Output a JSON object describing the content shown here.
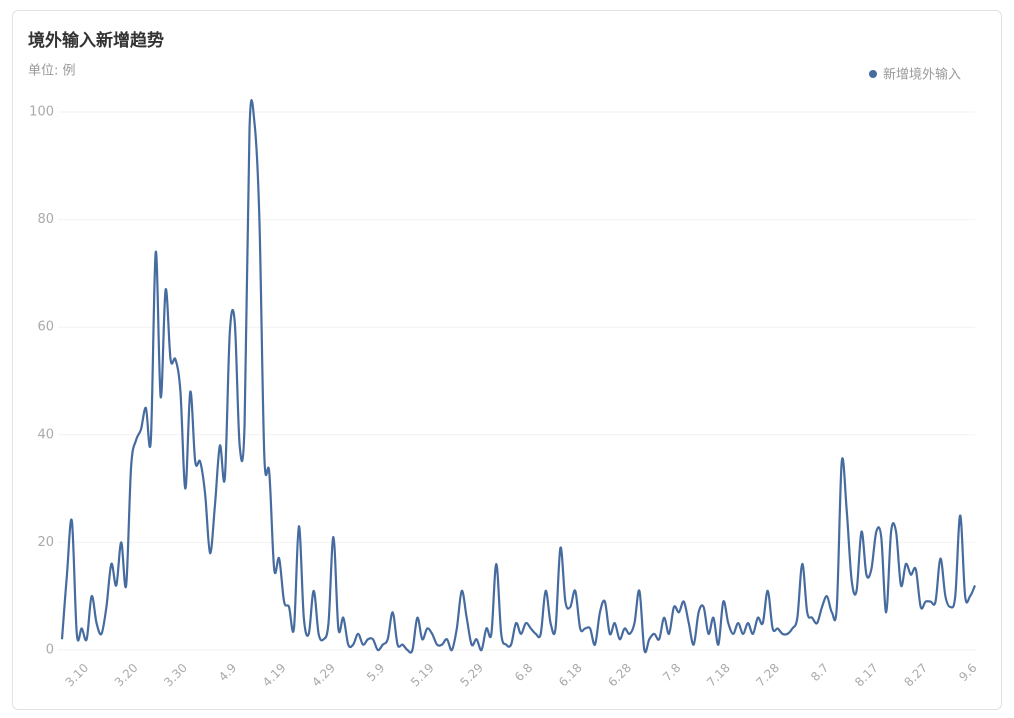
{
  "chart_data": {
    "type": "line",
    "title": "境外输入新增趋势",
    "subtitle": "单位: 例",
    "categories": [
      null,
      null,
      null,
      null,
      null,
      "3.10",
      null,
      null,
      null,
      null,
      null,
      null,
      null,
      null,
      null,
      "3.20",
      null,
      null,
      null,
      null,
      null,
      null,
      null,
      null,
      null,
      "3.30",
      null,
      null,
      null,
      null,
      null,
      null,
      null,
      null,
      null,
      "4.9",
      null,
      null,
      null,
      null,
      null,
      null,
      null,
      null,
      null,
      "4.19",
      null,
      null,
      null,
      null,
      null,
      null,
      null,
      null,
      null,
      "4.29",
      null,
      null,
      null,
      null,
      null,
      null,
      null,
      null,
      null,
      "5.9",
      null,
      null,
      null,
      null,
      null,
      null,
      null,
      null,
      null,
      "5.19",
      null,
      null,
      null,
      null,
      null,
      null,
      null,
      null,
      null,
      "5.29",
      null,
      null,
      null,
      null,
      null,
      null,
      null,
      null,
      null,
      "6.8",
      null,
      null,
      null,
      null,
      null,
      null,
      null,
      null,
      null,
      "6.18",
      null,
      null,
      null,
      null,
      null,
      null,
      null,
      null,
      null,
      "6.28",
      null,
      null,
      null,
      null,
      null,
      null,
      null,
      null,
      null,
      "7.8",
      null,
      null,
      null,
      null,
      null,
      null,
      null,
      null,
      null,
      "7.18",
      null,
      null,
      null,
      null,
      null,
      null,
      null,
      null,
      null,
      "7.28",
      null,
      null,
      null,
      null,
      null,
      null,
      null,
      null,
      null,
      "8.7",
      null,
      null,
      null,
      null,
      null,
      null,
      null,
      null,
      null,
      "8.17",
      null,
      null,
      null,
      null,
      null,
      null,
      null,
      null,
      null,
      "8.27",
      null,
      null,
      null,
      null,
      null,
      null,
      null,
      null,
      null,
      "9.6"
    ],
    "series": [
      {
        "name": "新增境外输入",
        "color": "#466b9f",
        "values": [
          2,
          14,
          24,
          3,
          4,
          2,
          10,
          5,
          3,
          8,
          16,
          12,
          20,
          12,
          34,
          39,
          41,
          45,
          39,
          74,
          47,
          67,
          54,
          54,
          48,
          30,
          48,
          35,
          35,
          29,
          18,
          27,
          38,
          32,
          59,
          61,
          38,
          42,
          97,
          98,
          80,
          36,
          33,
          15,
          17,
          9,
          8,
          4,
          23,
          6,
          3,
          11,
          3,
          2,
          5,
          21,
          4,
          6,
          1,
          1,
          3,
          1,
          2,
          2,
          0,
          1,
          2,
          7,
          1,
          1,
          0,
          0,
          6,
          2,
          4,
          3,
          1,
          1,
          2,
          0,
          4,
          11,
          6,
          1,
          2,
          0,
          4,
          3,
          16,
          3,
          1,
          1,
          5,
          3,
          5,
          4,
          3,
          3,
          11,
          5,
          4,
          19,
          9,
          8,
          11,
          4,
          4,
          4,
          1,
          7,
          9,
          3,
          5,
          2,
          4,
          3,
          5,
          11,
          0,
          2,
          3,
          2,
          6,
          3,
          8,
          7,
          9,
          5,
          1,
          7,
          8,
          3,
          6,
          1,
          9,
          5,
          3,
          5,
          3,
          5,
          3,
          6,
          5,
          11,
          4,
          4,
          3,
          3,
          4,
          6,
          16,
          7,
          6,
          5,
          8,
          10,
          7,
          8,
          35,
          26,
          13,
          11,
          22,
          14,
          15,
          22,
          21,
          7,
          22,
          22,
          12,
          16,
          14,
          15,
          8,
          9,
          9,
          9,
          17,
          10,
          8,
          10,
          25,
          10,
          10,
          12
        ]
      }
    ],
    "ylim": [
      0,
      100
    ],
    "yticks": [
      0,
      20,
      40,
      60,
      80,
      100
    ],
    "grid": true,
    "legend": "top-right"
  }
}
